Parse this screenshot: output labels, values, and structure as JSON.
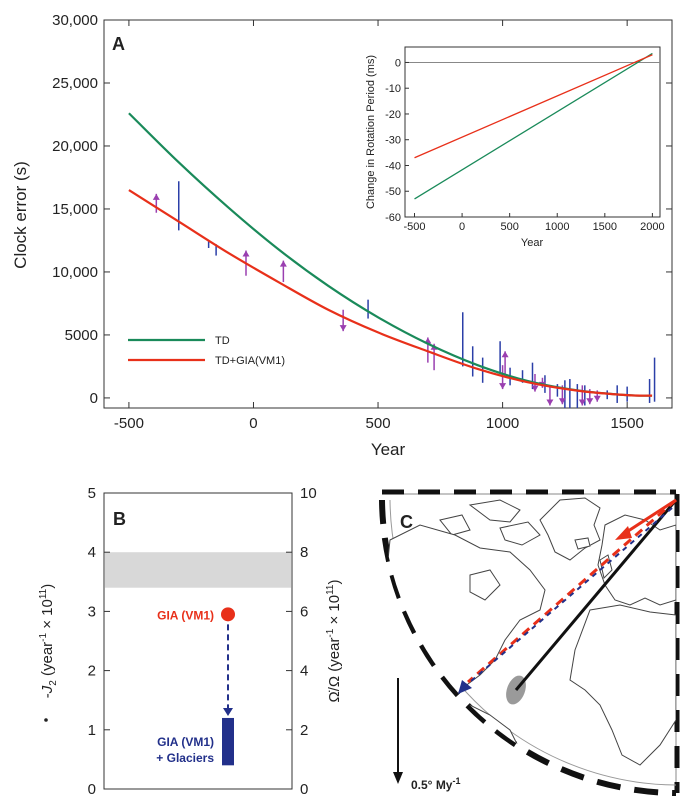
{
  "chart_data": [
    {
      "panel": "A",
      "type": "line",
      "xlabel": "Year",
      "ylabel": "Clock error (s)",
      "xlim": [
        -600,
        1680
      ],
      "ylim": [
        -800,
        30000
      ],
      "xticks": [
        "-500",
        "0",
        "500",
        "1000",
        "1500"
      ],
      "yticks": [
        "0",
        "5000",
        "10,000",
        "15,000",
        "20,000",
        "25,000",
        "30,000"
      ],
      "legend_position": "lower-left",
      "series": [
        {
          "name": "TD",
          "color": "#1a8a5a",
          "x": [
            -500,
            -300,
            -100,
            100,
            300,
            500,
            700,
            900,
            1100,
            1300,
            1500,
            1600
          ],
          "y": [
            22600,
            18700,
            15100,
            11800,
            8900,
            6400,
            4300,
            2600,
            1350,
            600,
            220,
            180
          ]
        },
        {
          "name": "TD+GIA(VM1)",
          "color": "#e8301a",
          "x": [
            -500,
            -300,
            -100,
            100,
            300,
            500,
            700,
            900,
            1100,
            1300,
            1500,
            1600
          ],
          "y": [
            16500,
            14000,
            11500,
            9200,
            7000,
            5200,
            3700,
            2300,
            1250,
            580,
            220,
            180
          ]
        }
      ],
      "error_bars": [
        {
          "x": -300,
          "low": 13300,
          "high": 17200
        },
        {
          "x": -180,
          "low": 11900,
          "high": 12500
        },
        {
          "x": -150,
          "low": 11300,
          "high": 12200
        },
        {
          "x": 460,
          "low": 6300,
          "high": 7800
        },
        {
          "x": 840,
          "low": 2500,
          "high": 6800
        },
        {
          "x": 880,
          "low": 1700,
          "high": 4100
        },
        {
          "x": 920,
          "low": 1200,
          "high": 3200
        },
        {
          "x": 990,
          "low": 1900,
          "high": 4500
        },
        {
          "x": 1030,
          "low": 1000,
          "high": 2400
        },
        {
          "x": 1080,
          "low": 1200,
          "high": 2200
        },
        {
          "x": 1120,
          "low": 700,
          "high": 2800
        },
        {
          "x": 1170,
          "low": 400,
          "high": 1800
        },
        {
          "x": 1220,
          "low": 100,
          "high": 1100
        },
        {
          "x": 1250,
          "low": -800,
          "high": 1400
        },
        {
          "x": 1270,
          "low": -800,
          "high": 1500
        },
        {
          "x": 1300,
          "low": -800,
          "high": 1100
        },
        {
          "x": 1330,
          "low": -600,
          "high": 1000
        },
        {
          "x": 1420,
          "low": -100,
          "high": 600
        },
        {
          "x": 1460,
          "low": -400,
          "high": 1000
        },
        {
          "x": 1500,
          "low": -300,
          "high": 900
        },
        {
          "x": 1590,
          "low": -400,
          "high": 1500
        },
        {
          "x": 1610,
          "low": -300,
          "high": 3200
        }
      ],
      "arrows": [
        {
          "x": -390,
          "from": 14700,
          "to": 16200
        },
        {
          "x": -30,
          "from": 9700,
          "to": 11700
        },
        {
          "x": 120,
          "from": 9200,
          "to": 10900
        },
        {
          "x": 360,
          "from": 7000,
          "to": 5300
        },
        {
          "x": 700,
          "from": 2800,
          "to": 4800
        },
        {
          "x": 725,
          "from": 2200,
          "to": 4300
        },
        {
          "x": 1000,
          "from": 2600,
          "to": 700
        },
        {
          "x": 1010,
          "from": 1900,
          "to": 3700
        },
        {
          "x": 1130,
          "from": 1900,
          "to": 500
        },
        {
          "x": 1160,
          "from": 1600,
          "to": 800
        },
        {
          "x": 1190,
          "from": 900,
          "to": -600
        },
        {
          "x": 1240,
          "from": 1000,
          "to": -500
        },
        {
          "x": 1320,
          "from": 1000,
          "to": -600
        },
        {
          "x": 1350,
          "from": 700,
          "to": -500
        },
        {
          "x": 1380,
          "from": 600,
          "to": -300
        }
      ],
      "inset": {
        "type": "line",
        "xlabel": "Year",
        "ylabel": "Change in Rotation Period (ms)",
        "xlim": [
          -600,
          2080
        ],
        "ylim": [
          -60,
          6
        ],
        "xticks": [
          "-500",
          "0",
          "500",
          "1000",
          "1500",
          "2000"
        ],
        "yticks": [
          "-60",
          "-50",
          "-40",
          "-30",
          "-20",
          "-10",
          "0"
        ],
        "series": [
          {
            "color": "#1a8a5a",
            "x": [
              -500,
              2000
            ],
            "y": [
              -53,
              3.5
            ]
          },
          {
            "color": "#e8301a",
            "x": [
              -500,
              2000
            ],
            "y": [
              -37,
              3
            ]
          }
        ]
      }
    },
    {
      "panel": "B",
      "type": "scatter",
      "ylabel_left": "-J̇₂ (year⁻¹ × 10¹¹)",
      "ylabel_left_parts": [
        "-",
        "J",
        "2",
        " (year",
        "-1",
        " × 10",
        "11",
        ")"
      ],
      "ylabel_right_parts": [
        "Ω̇/Ω (year",
        "-1",
        " × 10",
        "11",
        ")"
      ],
      "ylim_left": [
        0,
        5
      ],
      "ylim_right": [
        0,
        10
      ],
      "yticks_left": [
        "0",
        "1",
        "2",
        "3",
        "4",
        "5"
      ],
      "yticks_right": [
        "0",
        "2",
        "4",
        "6",
        "8",
        "10"
      ],
      "observed_band": [
        3.4,
        4.0
      ],
      "gia_point": {
        "label": "GIA (VM1)",
        "value": 2.95,
        "color": "#e8301a"
      },
      "gia_glaciers_bar": {
        "label_line1": "GIA (VM1)",
        "label_line2": "+ Glaciers",
        "low": 0.4,
        "high": 1.2,
        "color": "#22308a"
      }
    }
  ],
  "panel_c": {
    "letter": "C",
    "scale_label": "0.5° My",
    "scale_label_sup": "-1"
  }
}
